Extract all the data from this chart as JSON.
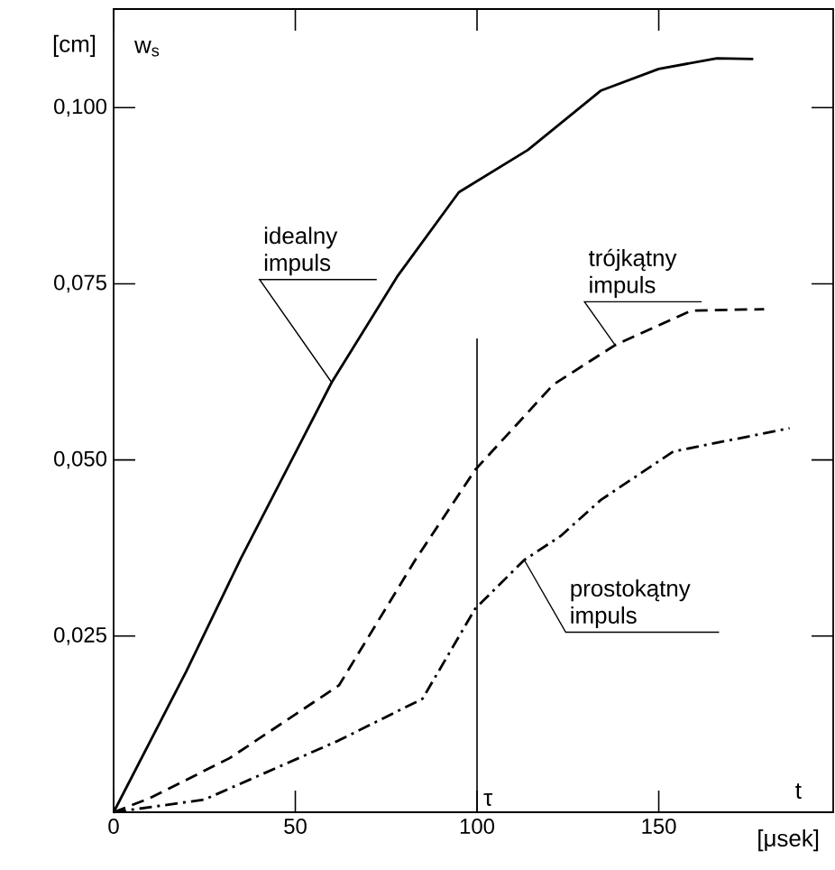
{
  "chart_data": {
    "type": "line",
    "xlabel": "[μsek]",
    "ylabel": "w$_{s}$",
    "xlim": [
      0,
      198
    ],
    "ylim": [
      0,
      0.114
    ],
    "xticks": [
      0,
      50,
      100,
      150
    ],
    "yticks": [
      {
        "value": 0.025,
        "label": "0,025"
      },
      {
        "value": 0.05,
        "label": "0,050"
      },
      {
        "value": 0.075,
        "label": "0,075"
      },
      {
        "value": 0.1,
        "label": "0,100"
      }
    ],
    "grid": false,
    "series": [
      {
        "color": "#000000",
        "line_style": "solid",
        "x": [
          0,
          20,
          35,
          50,
          60,
          78,
          95,
          114,
          134,
          150,
          166,
          176
        ],
        "values": [
          0,
          0.02,
          0.036,
          0.051,
          0.061,
          0.076,
          0.088,
          0.094,
          0.1024,
          0.1055,
          0.107,
          0.1069
        ]
      },
      {
        "color": "#000000",
        "line_style": "dashed",
        "x": [
          0,
          10,
          32,
          62,
          83,
          99.5,
          121,
          138,
          159,
          179
        ],
        "values": [
          0,
          0.002,
          0.0077,
          0.018,
          0.0358,
          0.0486,
          0.0607,
          0.0663,
          0.0712,
          0.0714
        ]
      },
      {
        "color": "#000000",
        "line_style": "dashdot",
        "x": [
          0,
          25,
          62,
          85,
          99.5,
          113,
          123,
          134,
          154,
          186
        ],
        "values": [
          0,
          0.0018,
          0.0102,
          0.0161,
          0.0289,
          0.0358,
          0.0392,
          0.0443,
          0.0512,
          0.0545
        ]
      }
    ],
    "ref_lines": [
      {
        "axis": "x",
        "value": 100,
        "label": "τ"
      }
    ],
    "annotations": [
      {
        "text": "idealny impuls",
        "x": 60,
        "y": 0.061
      },
      {
        "text": "trójkątny impuls",
        "x": 138,
        "y": 0.0663
      },
      {
        "text": "prostokątny impuls",
        "x": 113,
        "y": 0.0358
      },
      "[cm]",
      "t"
    ]
  }
}
